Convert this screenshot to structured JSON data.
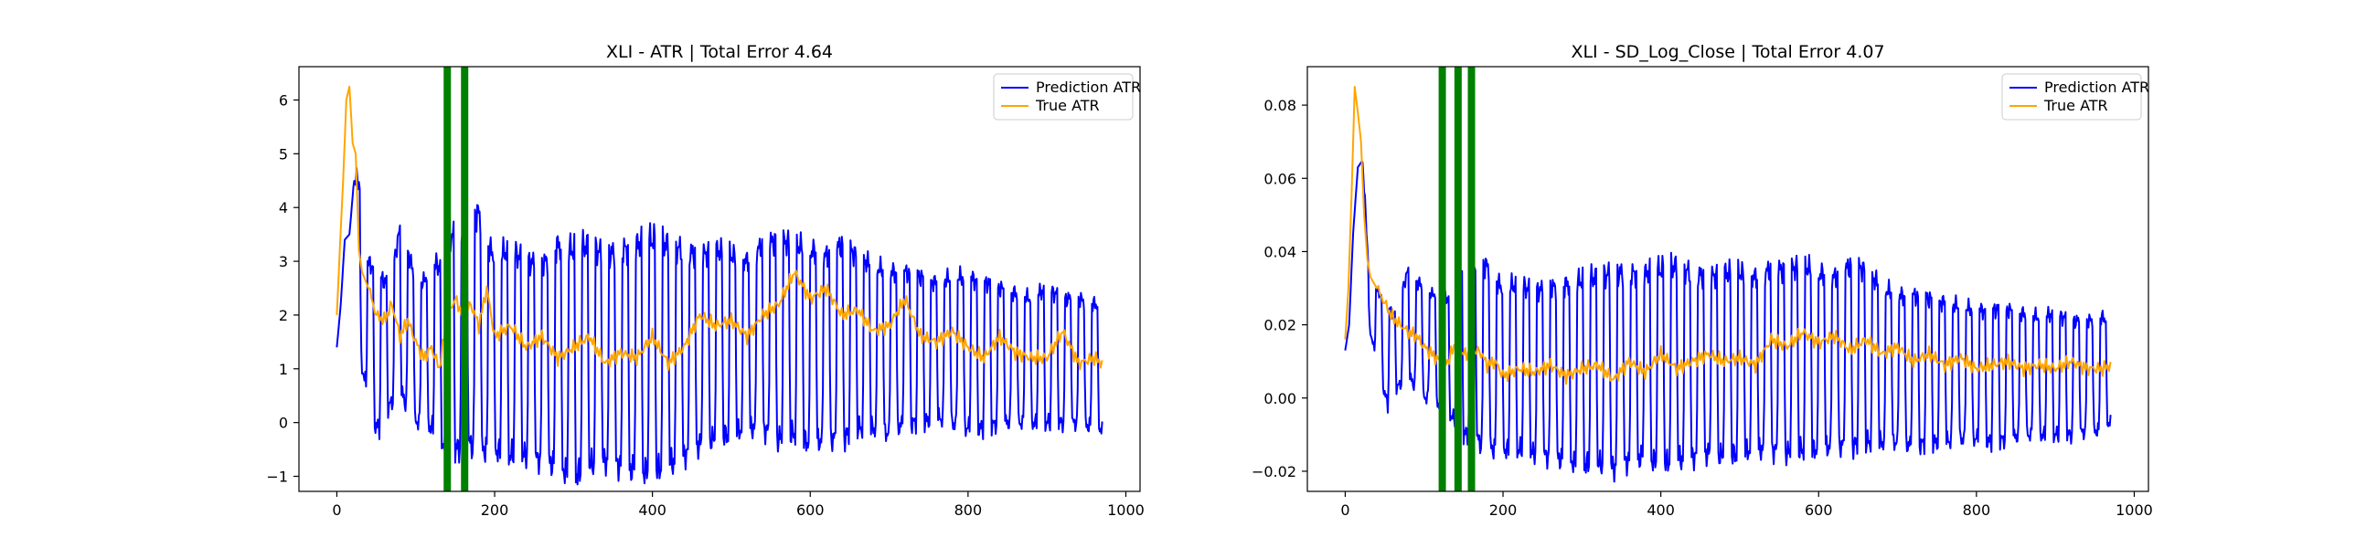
{
  "chart_data": [
    {
      "type": "line",
      "title": "XLI - ATR | Total Error 4.64",
      "xlabel": "",
      "ylabel": "",
      "xlim": [
        -48,
        1018
      ],
      "ylim": [
        -1.28,
        6.62
      ],
      "xticks": [
        0,
        200,
        400,
        600,
        800,
        1000
      ],
      "yticks": [
        -1,
        0,
        1,
        2,
        3,
        4,
        5,
        6
      ],
      "grid": false,
      "legend_position": "top-right",
      "highlight_color": "#008000",
      "vlines": [
        140,
        162
      ],
      "series": [
        {
          "name": "Prediction ATR",
          "color": "#0000ff",
          "oscillating": true,
          "x": [
            0,
            5,
            10,
            16,
            22,
            30,
            38,
            46,
            54,
            62,
            70,
            80,
            90,
            100,
            110,
            120,
            130,
            140,
            150,
            160,
            170,
            180,
            190,
            200,
            220,
            240,
            260,
            280,
            300,
            320,
            340,
            360,
            380,
            400,
            420,
            440,
            460,
            480,
            500,
            520,
            540,
            560,
            580,
            600,
            620,
            640,
            660,
            680,
            700,
            720,
            740,
            760,
            780,
            800,
            820,
            840,
            860,
            880,
            900,
            920,
            940,
            960,
            970
          ],
          "hi": [
            1.4,
            2.2,
            3.4,
            3.5,
            4.55,
            4.45,
            3.0,
            2.9,
            2.7,
            2.6,
            2.8,
            3.6,
            3.2,
            2.6,
            2.6,
            3.0,
            2.9,
            3.4,
            3.5,
            3.3,
            3.8,
            3.9,
            3.3,
            3.1,
            3.2,
            3.0,
            2.9,
            3.3,
            3.2,
            3.3,
            3.1,
            3.2,
            3.3,
            3.4,
            3.3,
            3.2,
            3.1,
            3.2,
            3.1,
            3.0,
            3.3,
            3.4,
            3.3,
            3.2,
            3.1,
            3.3,
            3.1,
            2.9,
            2.8,
            2.8,
            2.7,
            2.6,
            2.7,
            2.7,
            2.6,
            2.5,
            2.4,
            2.3,
            2.5,
            2.3,
            2.3,
            2.2,
            2.2
          ],
          "lo": [
            1.4,
            2.2,
            3.4,
            3.5,
            1.5,
            1.2,
            0.6,
            0.0,
            -0.1,
            0.2,
            0.4,
            0.6,
            0.3,
            0.0,
            0.1,
            -0.1,
            -0.2,
            -0.6,
            -0.5,
            -0.4,
            -0.4,
            -0.5,
            -0.5,
            -0.5,
            -0.6,
            -0.6,
            -0.7,
            -0.8,
            -1.0,
            -0.8,
            -0.7,
            -0.8,
            -0.9,
            -0.9,
            -0.8,
            -0.6,
            -0.4,
            -0.3,
            -0.2,
            -0.1,
            -0.1,
            -0.3,
            -0.2,
            -0.4,
            -0.3,
            -0.3,
            -0.1,
            -0.1,
            -0.2,
            0.0,
            0.0,
            0.1,
            0.0,
            -0.1,
            -0.1,
            0.0,
            0.0,
            0.0,
            0.0,
            0.0,
            0.0,
            -0.1,
            -0.1
          ]
        },
        {
          "name": "True ATR",
          "color": "#ffa500",
          "oscillating": false,
          "x": [
            0,
            4,
            8,
            12,
            16,
            20,
            24,
            28,
            32,
            40,
            50,
            60,
            70,
            80,
            90,
            100,
            110,
            120,
            130,
            140,
            150,
            160,
            170,
            180,
            190,
            200,
            220,
            240,
            260,
            280,
            300,
            320,
            340,
            360,
            380,
            400,
            420,
            440,
            460,
            480,
            500,
            520,
            540,
            560,
            580,
            600,
            620,
            640,
            660,
            680,
            700,
            720,
            740,
            760,
            780,
            800,
            820,
            840,
            860,
            880,
            900,
            920,
            940,
            960,
            970
          ],
          "y": [
            2.0,
            3.3,
            4.5,
            6.0,
            6.25,
            5.2,
            5.0,
            3.2,
            2.8,
            2.5,
            2.0,
            1.9,
            2.2,
            1.6,
            1.9,
            1.5,
            1.2,
            1.4,
            1.0,
            2.0,
            2.3,
            2.0,
            2.2,
            1.8,
            2.5,
            1.6,
            1.8,
            1.4,
            1.6,
            1.2,
            1.4,
            1.6,
            1.1,
            1.3,
            1.2,
            1.6,
            1.1,
            1.4,
            2.0,
            1.8,
            1.9,
            1.6,
            2.0,
            2.2,
            2.8,
            2.3,
            2.5,
            2.0,
            2.1,
            1.7,
            1.8,
            2.3,
            1.6,
            1.5,
            1.7,
            1.4,
            1.2,
            1.6,
            1.3,
            1.2,
            1.2,
            1.7,
            1.1,
            1.2,
            1.1
          ]
        }
      ]
    },
    {
      "type": "line",
      "title": "XLI - SD_Log_Close | Total Error 4.07",
      "xlabel": "",
      "ylabel": "",
      "xlim": [
        -48,
        1018
      ],
      "ylim": [
        -0.0255,
        0.0905
      ],
      "xticks": [
        0,
        200,
        400,
        600,
        800,
        1000
      ],
      "yticks": [
        -0.02,
        0.0,
        0.02,
        0.04,
        0.06,
        0.08
      ],
      "ytick_labels": [
        "−0.02",
        "0.00",
        "0.02",
        "0.04",
        "0.06",
        "0.08"
      ],
      "grid": false,
      "legend_position": "top-right",
      "highlight_color": "#008000",
      "vlines": [
        123,
        143,
        160
      ],
      "series": [
        {
          "name": "Prediction ATR",
          "color": "#0000ff",
          "oscillating": true,
          "x": [
            0,
            5,
            10,
            16,
            22,
            30,
            38,
            46,
            54,
            62,
            70,
            80,
            90,
            100,
            110,
            120,
            130,
            140,
            150,
            160,
            170,
            180,
            190,
            200,
            220,
            240,
            260,
            280,
            300,
            320,
            340,
            360,
            380,
            400,
            420,
            440,
            460,
            480,
            500,
            520,
            540,
            560,
            580,
            600,
            620,
            640,
            660,
            680,
            700,
            720,
            740,
            760,
            780,
            800,
            820,
            840,
            860,
            880,
            900,
            920,
            940,
            960,
            970
          ],
          "hi": [
            0.013,
            0.02,
            0.045,
            0.063,
            0.065,
            0.034,
            0.03,
            0.028,
            0.025,
            0.022,
            0.028,
            0.035,
            0.032,
            0.03,
            0.028,
            0.03,
            0.027,
            0.028,
            0.033,
            0.032,
            0.037,
            0.036,
            0.032,
            0.03,
            0.031,
            0.029,
            0.03,
            0.031,
            0.032,
            0.033,
            0.034,
            0.034,
            0.034,
            0.035,
            0.036,
            0.034,
            0.033,
            0.034,
            0.034,
            0.033,
            0.035,
            0.035,
            0.036,
            0.034,
            0.033,
            0.036,
            0.035,
            0.03,
            0.028,
            0.028,
            0.027,
            0.026,
            0.025,
            0.024,
            0.024,
            0.024,
            0.023,
            0.022,
            0.023,
            0.021,
            0.021,
            0.022,
            0.021
          ],
          "lo": [
            0.013,
            0.02,
            0.045,
            0.063,
            0.03,
            0.02,
            0.012,
            0.005,
            -0.002,
            0.002,
            0.004,
            0.006,
            0.003,
            0.0,
            0.001,
            -0.002,
            -0.004,
            -0.006,
            -0.01,
            -0.009,
            -0.012,
            -0.013,
            -0.014,
            -0.014,
            -0.014,
            -0.015,
            -0.016,
            -0.017,
            -0.018,
            -0.018,
            -0.019,
            -0.017,
            -0.016,
            -0.018,
            -0.017,
            -0.016,
            -0.015,
            -0.016,
            -0.015,
            -0.014,
            -0.014,
            -0.015,
            -0.014,
            -0.014,
            -0.013,
            -0.013,
            -0.012,
            -0.012,
            -0.012,
            -0.013,
            -0.012,
            -0.012,
            -0.011,
            -0.011,
            -0.012,
            -0.011,
            -0.01,
            -0.01,
            -0.01,
            -0.01,
            -0.009,
            -0.009,
            -0.006
          ]
        },
        {
          "name": "True ATR",
          "color": "#ffa500",
          "oscillating": false,
          "x": [
            0,
            4,
            8,
            12,
            16,
            20,
            24,
            28,
            32,
            40,
            50,
            60,
            70,
            80,
            90,
            100,
            110,
            120,
            130,
            140,
            150,
            160,
            170,
            180,
            190,
            200,
            220,
            240,
            260,
            280,
            300,
            320,
            340,
            360,
            380,
            400,
            420,
            440,
            460,
            480,
            500,
            520,
            540,
            560,
            580,
            600,
            620,
            640,
            660,
            680,
            700,
            720,
            740,
            760,
            780,
            800,
            820,
            840,
            860,
            880,
            900,
            920,
            940,
            960,
            970
          ],
          "y": [
            0.016,
            0.03,
            0.055,
            0.085,
            0.078,
            0.07,
            0.05,
            0.038,
            0.033,
            0.03,
            0.026,
            0.022,
            0.02,
            0.018,
            0.017,
            0.014,
            0.012,
            0.01,
            0.01,
            0.015,
            0.012,
            0.012,
            0.013,
            0.009,
            0.01,
            0.006,
            0.008,
            0.007,
            0.009,
            0.006,
            0.008,
            0.009,
            0.005,
            0.01,
            0.007,
            0.012,
            0.008,
            0.01,
            0.012,
            0.01,
            0.011,
            0.009,
            0.016,
            0.014,
            0.018,
            0.015,
            0.017,
            0.013,
            0.016,
            0.012,
            0.014,
            0.01,
            0.012,
            0.009,
            0.011,
            0.008,
            0.009,
            0.01,
            0.008,
            0.009,
            0.008,
            0.01,
            0.008,
            0.008,
            0.009
          ]
        }
      ]
    }
  ]
}
